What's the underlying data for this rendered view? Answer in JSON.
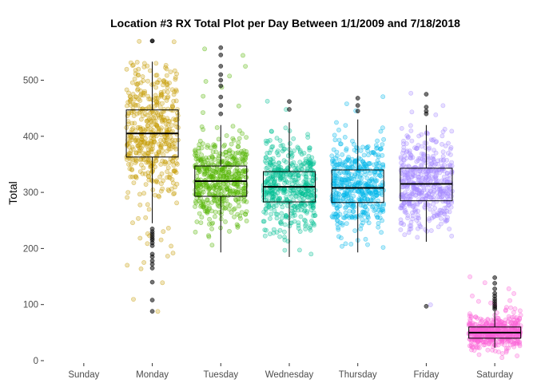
{
  "chart_data": {
    "type": "box",
    "title": "Location #3 RX Total Plot per Day Between 1/1/2009 and 7/18/2018",
    "xlabel": "",
    "ylabel": "Total",
    "categories": [
      "Sunday",
      "Monday",
      "Tuesday",
      "Wednesday",
      "Thursday",
      "Friday",
      "Saturday"
    ],
    "ylim": [
      0,
      575
    ],
    "yticks": [
      0,
      100,
      200,
      300,
      400,
      500
    ],
    "grid": false,
    "legend": "none",
    "series": [
      {
        "category": "Sunday",
        "present": false
      },
      {
        "category": "Monday",
        "color": "#C49A00",
        "whisker_low": 245,
        "q1": 363,
        "median": 405,
        "q3": 447,
        "whisker_high": 533,
        "range": [
          245,
          533
        ],
        "outliers": [
          235,
          230,
          226,
          222,
          218,
          215,
          210,
          205,
          190,
          185,
          178,
          172,
          165,
          140,
          108,
          88,
          570,
          570
        ]
      },
      {
        "category": "Tuesday",
        "color": "#53B400",
        "whisker_low": 193,
        "q1": 293,
        "median": 320,
        "q3": 347,
        "whisker_high": 420,
        "range": [
          193,
          420
        ],
        "outliers": [
          440,
          455,
          470,
          490,
          500,
          510,
          525,
          545,
          558
        ]
      },
      {
        "category": "Wednesday",
        "color": "#00C094",
        "whisker_low": 185,
        "q1": 283,
        "median": 310,
        "q3": 337,
        "whisker_high": 425,
        "range": [
          185,
          425
        ],
        "outliers": [
          448,
          462
        ]
      },
      {
        "category": "Thursday",
        "color": "#00B6EB",
        "whisker_low": 193,
        "q1": 282,
        "median": 308,
        "q3": 340,
        "whisker_high": 430,
        "range": [
          193,
          430
        ],
        "outliers": [
          445,
          455,
          468
        ]
      },
      {
        "category": "Friday",
        "color": "#A58AFF",
        "whisker_low": 212,
        "q1": 285,
        "median": 315,
        "q3": 343,
        "whisker_high": 420,
        "range": [
          212,
          420
        ],
        "outliers": [
          97,
          440,
          445,
          452,
          475
        ]
      },
      {
        "category": "Saturday",
        "color": "#FB61D7",
        "whisker_low": 23,
        "q1": 40,
        "median": 50,
        "q3": 60,
        "whisker_high": 88,
        "range": [
          5,
          150
        ],
        "outliers": [
          92,
          95,
          98,
          102,
          106,
          110,
          115,
          120,
          128,
          138,
          148
        ]
      }
    ]
  }
}
